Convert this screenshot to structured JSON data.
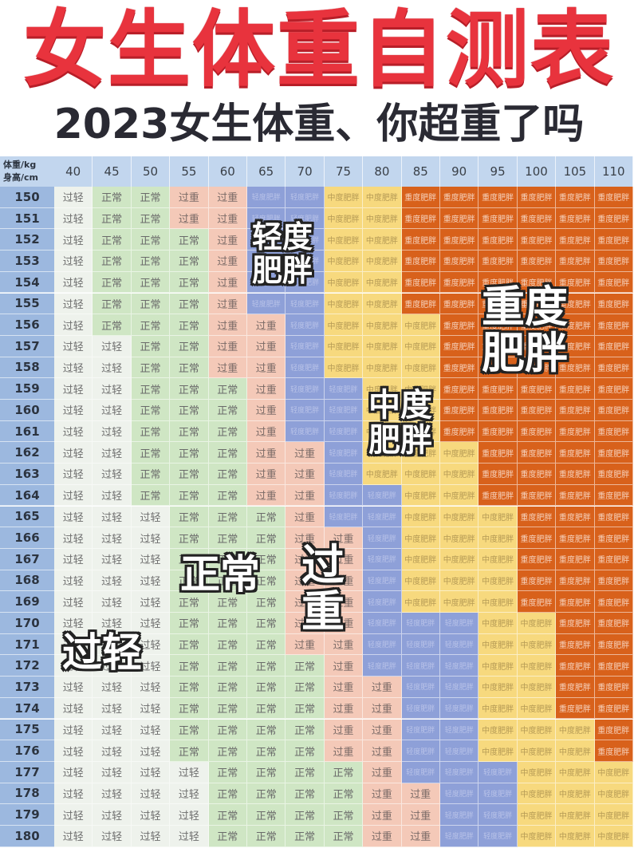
{
  "header": {
    "title": "女生体重自测表",
    "subtitle": "2023女生体重、你超重了吗"
  },
  "table": {
    "corner_weight": "体重/kg",
    "corner_height": "身高/cm",
    "weights": [
      40,
      45,
      50,
      55,
      60,
      65,
      70,
      75,
      80,
      85,
      90,
      95,
      100,
      105,
      110
    ],
    "heights": [
      150,
      151,
      152,
      153,
      154,
      155,
      156,
      157,
      158,
      159,
      160,
      161,
      162,
      163,
      164,
      165,
      166,
      167,
      168,
      169,
      170,
      171,
      172,
      173,
      174,
      175,
      176,
      177,
      178,
      179,
      180
    ],
    "categories": [
      "过轻",
      "正常",
      "过重",
      "轻度肥胖",
      "中度肥胖",
      "重度肥胖"
    ],
    "colors": [
      "#eef2ec",
      "#cfe6c4",
      "#f4c9b8",
      "#8ea0d8",
      "#f7d97e",
      "#d8611b"
    ],
    "grid": [
      [
        0,
        1,
        1,
        2,
        2,
        3,
        3,
        4,
        4,
        5,
        5,
        5,
        5,
        5,
        5
      ],
      [
        0,
        1,
        1,
        2,
        2,
        3,
        3,
        4,
        4,
        5,
        5,
        5,
        5,
        5,
        5
      ],
      [
        0,
        1,
        1,
        1,
        2,
        3,
        3,
        4,
        4,
        5,
        5,
        5,
        5,
        5,
        5
      ],
      [
        0,
        1,
        1,
        1,
        2,
        3,
        3,
        4,
        4,
        5,
        5,
        5,
        5,
        5,
        5
      ],
      [
        0,
        1,
        1,
        1,
        2,
        3,
        3,
        4,
        4,
        5,
        5,
        5,
        5,
        5,
        5
      ],
      [
        0,
        1,
        1,
        1,
        2,
        3,
        3,
        4,
        4,
        5,
        5,
        5,
        5,
        5,
        5
      ],
      [
        0,
        1,
        1,
        1,
        2,
        2,
        3,
        4,
        4,
        4,
        5,
        5,
        5,
        5,
        5
      ],
      [
        0,
        0,
        1,
        1,
        2,
        2,
        3,
        4,
        4,
        4,
        5,
        5,
        5,
        5,
        5
      ],
      [
        0,
        0,
        1,
        1,
        2,
        2,
        3,
        4,
        4,
        4,
        5,
        5,
        5,
        5,
        5
      ],
      [
        0,
        0,
        1,
        1,
        1,
        2,
        3,
        3,
        4,
        4,
        5,
        5,
        5,
        5,
        5
      ],
      [
        0,
        0,
        1,
        1,
        1,
        2,
        3,
        3,
        4,
        4,
        5,
        5,
        5,
        5,
        5
      ],
      [
        0,
        0,
        1,
        1,
        1,
        2,
        3,
        3,
        4,
        4,
        5,
        5,
        5,
        5,
        5
      ],
      [
        0,
        0,
        1,
        1,
        1,
        2,
        2,
        3,
        4,
        4,
        4,
        5,
        5,
        5,
        5
      ],
      [
        0,
        0,
        1,
        1,
        1,
        2,
        2,
        3,
        4,
        4,
        4,
        5,
        5,
        5,
        5
      ],
      [
        0,
        0,
        1,
        1,
        1,
        2,
        2,
        3,
        3,
        4,
        4,
        5,
        5,
        5,
        5
      ],
      [
        0,
        0,
        0,
        1,
        1,
        1,
        2,
        3,
        3,
        4,
        4,
        4,
        5,
        5,
        5
      ],
      [
        0,
        0,
        0,
        1,
        1,
        1,
        2,
        2,
        3,
        4,
        4,
        4,
        5,
        5,
        5
      ],
      [
        0,
        0,
        0,
        1,
        1,
        1,
        2,
        2,
        3,
        4,
        4,
        4,
        5,
        5,
        5
      ],
      [
        0,
        0,
        0,
        1,
        1,
        1,
        2,
        2,
        3,
        4,
        4,
        4,
        5,
        5,
        5
      ],
      [
        0,
        0,
        0,
        1,
        1,
        1,
        2,
        2,
        3,
        4,
        4,
        4,
        5,
        5,
        5
      ],
      [
        0,
        0,
        0,
        1,
        1,
        1,
        2,
        2,
        3,
        3,
        3,
        4,
        4,
        5,
        5
      ],
      [
        0,
        0,
        0,
        1,
        1,
        1,
        2,
        2,
        3,
        3,
        3,
        4,
        4,
        5,
        5
      ],
      [
        0,
        0,
        0,
        1,
        1,
        1,
        1,
        2,
        3,
        3,
        3,
        4,
        4,
        5,
        5
      ],
      [
        0,
        0,
        0,
        1,
        1,
        1,
        1,
        2,
        2,
        3,
        3,
        4,
        4,
        5,
        5
      ],
      [
        0,
        0,
        0,
        1,
        1,
        1,
        1,
        2,
        2,
        3,
        3,
        4,
        4,
        5,
        5
      ],
      [
        0,
        0,
        0,
        1,
        1,
        1,
        1,
        2,
        2,
        3,
        3,
        4,
        4,
        4,
        5
      ],
      [
        0,
        0,
        0,
        1,
        1,
        1,
        1,
        2,
        2,
        3,
        3,
        4,
        4,
        4,
        5
      ],
      [
        0,
        0,
        0,
        0,
        1,
        1,
        1,
        1,
        2,
        3,
        3,
        3,
        4,
        4,
        4
      ],
      [
        0,
        0,
        0,
        0,
        1,
        1,
        1,
        1,
        2,
        2,
        3,
        3,
        4,
        4,
        4
      ],
      [
        0,
        0,
        0,
        0,
        1,
        1,
        1,
        1,
        2,
        2,
        3,
        3,
        4,
        4,
        4
      ],
      [
        0,
        0,
        0,
        0,
        1,
        1,
        1,
        1,
        2,
        2,
        3,
        3,
        4,
        4,
        4
      ]
    ]
  },
  "labels": {
    "underweight": "过轻",
    "normal": "正常",
    "overweight_line1": "过",
    "overweight_line2": "重",
    "mild_line1": "轻度",
    "mild_line2": "肥胖",
    "moderate_line1": "中度",
    "moderate_line2": "肥胖",
    "severe_line1": "重度",
    "severe_line2": "肥胖"
  }
}
